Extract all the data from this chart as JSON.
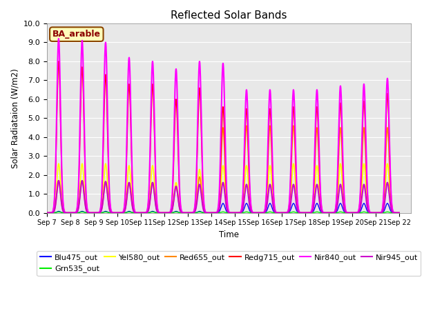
{
  "title": "Reflected Solar Bands",
  "ylabel": "Solar Radiataion (W/m2)",
  "xlabel": "Time",
  "ylim": [
    0,
    10.0
  ],
  "yticks": [
    0.0,
    1.0,
    2.0,
    3.0,
    4.0,
    5.0,
    6.0,
    7.0,
    8.0,
    9.0,
    10.0
  ],
  "xtick_labels": [
    "Sep 7",
    "Sep 8",
    "Sep 9",
    "Sep 10",
    "Sep 11",
    "Sep 12",
    "Sep 13",
    "Sep 14",
    "Sep 15",
    "Sep 16",
    "Sep 17",
    "Sep 18",
    "Sep 19",
    "Sep 20",
    "Sep 21",
    "Sep 22"
  ],
  "annotation": "BA_arable",
  "background_color": "#e8e8e8",
  "series_order": [
    "Blu475_out",
    "Grn535_out",
    "Yel580_out",
    "Red655_out",
    "Redg715_out",
    "Nir840_out",
    "Nir945_out"
  ],
  "series": {
    "Blu475_out": {
      "color": "#0000ff",
      "lw": 1.0
    },
    "Grn535_out": {
      "color": "#00ee00",
      "lw": 1.0
    },
    "Yel580_out": {
      "color": "#ffff00",
      "lw": 1.2
    },
    "Red655_out": {
      "color": "#ff8800",
      "lw": 1.2
    },
    "Redg715_out": {
      "color": "#ff0000",
      "lw": 1.2
    },
    "Nir840_out": {
      "color": "#ff00ff",
      "lw": 1.5
    },
    "Nir945_out": {
      "color": "#cc00cc",
      "lw": 1.5
    }
  },
  "nir840_peaks": [
    9.2,
    9.1,
    9.0,
    8.2,
    8.0,
    7.6,
    8.0,
    7.9,
    6.5,
    6.5,
    6.5,
    6.5,
    6.7,
    6.8,
    7.1
  ],
  "redg715_peaks": [
    8.0,
    7.7,
    7.3,
    6.8,
    6.8,
    6.0,
    6.6,
    5.6,
    5.5,
    5.5,
    5.6,
    5.6,
    5.8,
    5.9,
    6.3
  ],
  "red655_peaks": [
    1.7,
    1.7,
    1.65,
    1.6,
    1.6,
    1.4,
    1.9,
    4.5,
    4.6,
    4.6,
    4.6,
    4.5,
    4.5,
    4.5,
    4.5
  ],
  "yel580_peaks": [
    2.6,
    2.6,
    2.6,
    2.5,
    2.5,
    1.6,
    2.3,
    2.5,
    2.5,
    2.5,
    2.6,
    2.5,
    2.6,
    2.6,
    2.6
  ],
  "nir945_peaks": [
    1.7,
    1.7,
    1.65,
    1.6,
    1.6,
    1.4,
    1.5,
    1.6,
    1.5,
    1.5,
    1.5,
    1.5,
    1.5,
    1.5,
    1.6
  ],
  "grn535_peaks": [
    0.05,
    0.05,
    0.05,
    0.05,
    0.05,
    0.05,
    0.05,
    0.05,
    0.05,
    0.05,
    0.05,
    0.05,
    0.05,
    0.05,
    0.05
  ],
  "blu475_peaks": [
    0.08,
    0.08,
    0.08,
    0.08,
    0.08,
    0.08,
    0.08,
    0.5,
    0.5,
    0.5,
    0.5,
    0.5,
    0.5,
    0.5,
    0.5
  ]
}
